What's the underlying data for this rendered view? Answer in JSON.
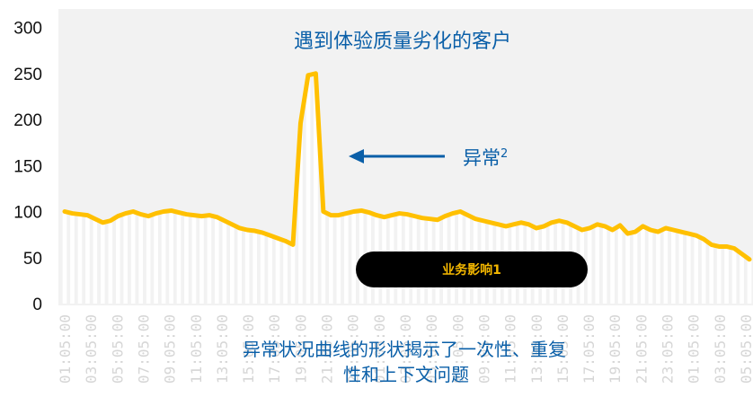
{
  "chart_data": {
    "type": "line",
    "title": "遇到体验质量劣化的客户",
    "xlabel": "",
    "ylabel": "",
    "ylim": [
      0,
      320
    ],
    "y_ticks": [
      0,
      50,
      100,
      150,
      200,
      250,
      300
    ],
    "x_tick_labels": [
      "01:05:00",
      "03:05:00",
      "05:05:00",
      "07:05:00",
      "09:05:00",
      "11:05:00",
      "13:05:00",
      "15:05:00",
      "17:05:00",
      "19:05:00",
      "21:05:00",
      "23:05:00",
      "01:05:00",
      "03:05:00",
      "05:05:00",
      "07:05:00",
      "09:05:00",
      "11:05:00",
      "13:05:00",
      "15:05:00",
      "17:05:00",
      "19:05:00",
      "21:05:00",
      "23:05:00",
      "01:05:00",
      "03:05:00",
      "05:05:00"
    ],
    "series": [
      {
        "color": "#ffc000",
        "values": [
          100,
          98,
          97,
          96,
          92,
          88,
          90,
          95,
          98,
          100,
          97,
          95,
          98,
          100,
          101,
          99,
          97,
          96,
          95,
          96,
          94,
          90,
          86,
          82,
          80,
          79,
          77,
          74,
          71,
          68,
          64,
          196,
          248,
          250,
          100,
          96,
          96,
          98,
          100,
          101,
          99,
          96,
          94,
          96,
          98,
          97,
          95,
          93,
          92,
          91,
          95,
          98,
          100,
          96,
          92,
          90,
          88,
          86,
          84,
          86,
          88,
          86,
          82,
          84,
          88,
          90,
          88,
          84,
          80,
          82,
          86,
          84,
          80,
          85,
          76,
          78,
          84,
          80,
          78,
          82,
          80,
          78,
          76,
          74,
          70,
          64,
          62,
          62,
          60,
          54,
          48
        ]
      }
    ],
    "grid": false,
    "annotations": [
      {
        "text": "异常",
        "superscript": "2",
        "arrow_color": "#0a5fa8"
      },
      {
        "text": "业务影响1",
        "bg": "#000000",
        "color": "#f5b800"
      },
      {
        "text_line1": "异常状况曲线的形状揭示了一次性、重复",
        "text_line2": "性和上下文问题"
      }
    ]
  },
  "colors": {
    "title_text": "#0a5fa8",
    "plot_background": "#f2f2f2",
    "bar_fill": "#ffffff",
    "line": "#ffc000",
    "axis_text": "#111111",
    "x_tick_text": "#d6d6d6"
  }
}
